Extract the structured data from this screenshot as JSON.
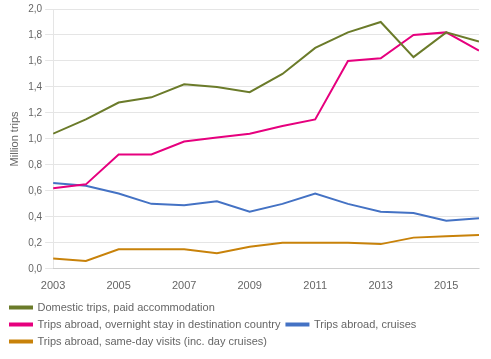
{
  "chart_data": {
    "type": "line",
    "ylabel": "Million trips",
    "x": [
      2003,
      2004,
      2005,
      2006,
      2007,
      2008,
      2009,
      2010,
      2011,
      2012,
      2013,
      2014,
      2015,
      2016
    ],
    "series": [
      {
        "name": "Domestic trips, paid accommodation",
        "color": "#6b7b2a",
        "values": [
          1.04,
          1.15,
          1.28,
          1.32,
          1.42,
          1.4,
          1.36,
          1.5,
          1.7,
          1.82,
          1.9,
          1.63,
          1.82,
          1.75
        ]
      },
      {
        "name": "Trips abroad, overnight stay in destination country",
        "color": "#e6007e",
        "values": [
          0.62,
          0.65,
          0.88,
          0.88,
          0.98,
          1.01,
          1.04,
          1.1,
          1.15,
          1.6,
          1.62,
          1.8,
          1.82,
          1.68
        ]
      },
      {
        "name": "Trips abroad, cruises",
        "color": "#4472c4",
        "values": [
          0.66,
          0.64,
          0.58,
          0.5,
          0.49,
          0.52,
          0.44,
          0.5,
          0.58,
          0.5,
          0.44,
          0.43,
          0.37,
          0.39
        ]
      },
      {
        "name": "Trips abroad, same-day visits (inc. day cruises)",
        "color": "#c8820a",
        "values": [
          0.08,
          0.06,
          0.15,
          0.15,
          0.15,
          0.12,
          0.17,
          0.2,
          0.2,
          0.2,
          0.19,
          0.24,
          0.25,
          0.26
        ]
      }
    ],
    "xlim": [
      2003,
      2016
    ],
    "xticks": [
      2003,
      2005,
      2007,
      2009,
      2011,
      2013,
      2015
    ],
    "ylim": [
      0.0,
      2.0
    ],
    "yticks": [
      {
        "value": 0.0,
        "label": "0,0"
      },
      {
        "value": 0.2,
        "label": "0,2"
      },
      {
        "value": 0.4,
        "label": "0,4"
      },
      {
        "value": 0.6,
        "label": "0,6"
      },
      {
        "value": 0.8,
        "label": "0,8"
      },
      {
        "value": 1.0,
        "label": "1,0"
      },
      {
        "value": 1.2,
        "label": "1,2"
      },
      {
        "value": 1.4,
        "label": "1,4"
      },
      {
        "value": 1.6,
        "label": "1,6"
      },
      {
        "value": 1.8,
        "label": "1,8"
      },
      {
        "value": 2.0,
        "label": "2,0"
      }
    ],
    "grid": "y",
    "legend": "bottom"
  }
}
